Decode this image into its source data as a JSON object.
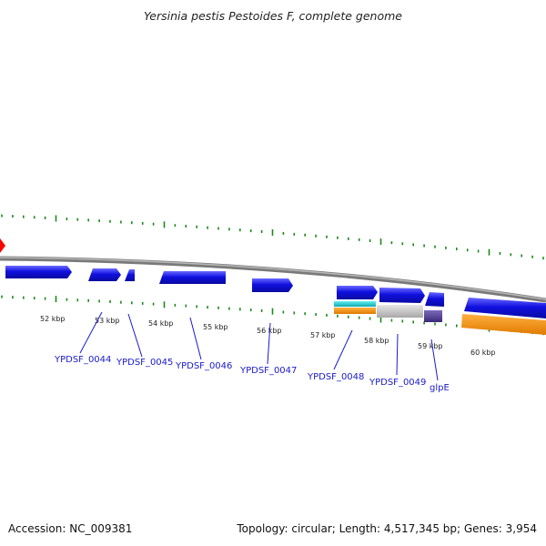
{
  "title": "Yersinia pestis Pestoides F, complete genome",
  "footer": {
    "accession": "Accession: NC_009381",
    "topology": "Topology: circular; Length: 4,517,345 bp; Genes: 3,954"
  },
  "scale_labels": [
    "52 kbp",
    "53 kbp",
    "54 kbp",
    "55 kbp",
    "56 kbp",
    "57 kbp",
    "58 kbp",
    "59 kbp",
    "60 kbp"
  ],
  "gene_labels": [
    "YPDSF_0044",
    "YPDSF_0045",
    "YPDSF_0046",
    "YPDSF_0047",
    "YPDSF_0048",
    "YPDSF_0049",
    "glpE"
  ],
  "colors": {
    "backbone": "#8a8a8a",
    "gene_blue": "#1010e0",
    "tick_green": "#1a8a1a",
    "orange": "#f08a10",
    "cyan": "#10c8c8",
    "gray": "#c0c0c0",
    "purple": "#4a3a8a",
    "origin_marker": "#ff0000",
    "label_blue": "#1a1acc"
  }
}
